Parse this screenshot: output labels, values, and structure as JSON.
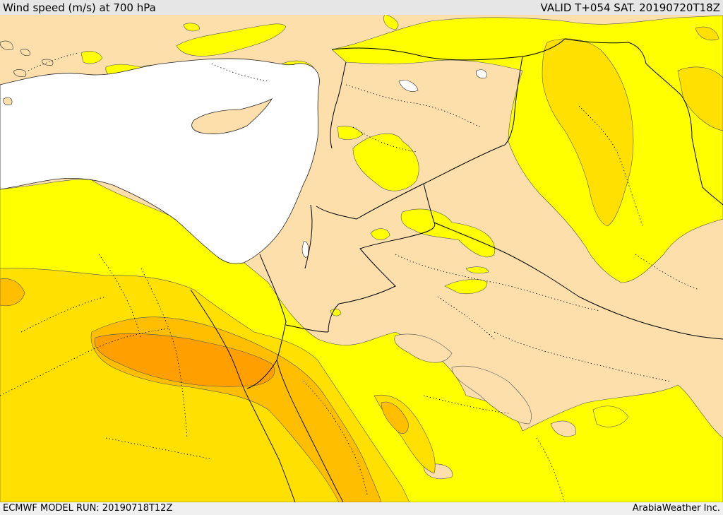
{
  "header": {
    "title": "Wind speed (m/s) at 700 hPa",
    "valid": "VALID T+054 SAT. 20190720T18Z"
  },
  "footer": {
    "model_run": "ECMWF MODEL RUN: 20190718T12Z",
    "credit": "ArabiaWeather Inc."
  },
  "map": {
    "field": "wind speed",
    "level": "700 hPa",
    "colors": {
      "sea": "#ffffff",
      "band_lt_5": "#fddfab",
      "band_5_10": "#ffff00",
      "band_10_15": "#ffe000",
      "band_15_20": "#ffbf00",
      "band_gt_20": "#ff9f00",
      "border": "#000000"
    }
  }
}
